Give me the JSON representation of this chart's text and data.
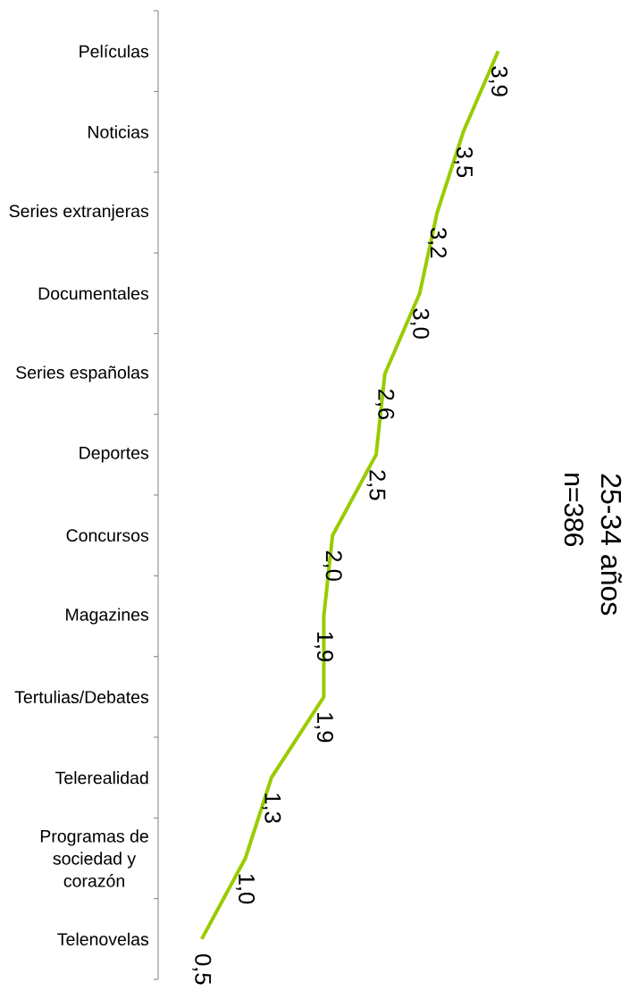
{
  "chart_data": {
    "type": "line",
    "title": "25-34 años",
    "subtitle": "n=386",
    "categories": [
      "Películas",
      "Noticias",
      "Series extranjeras",
      "Documentales",
      "Series españolas",
      "Deportes",
      "Concursos",
      "Magazines",
      "Tertulias/Debates",
      "Telerealidad",
      "Programas de sociedad y corazón",
      "Telenovelas"
    ],
    "values": [
      3.9,
      3.5,
      3.2,
      3.0,
      2.6,
      2.5,
      2.0,
      1.9,
      1.9,
      1.3,
      1.0,
      0.5
    ],
    "value_labels": [
      "3,9",
      "3,5",
      "3,2",
      "3,0",
      "2,6",
      "2,5",
      "2,0",
      "1,9",
      "1,9",
      "1,3",
      "1,0",
      "0,5"
    ],
    "color": "#99cc00",
    "orientation": "horizontal",
    "tick_labels": "y"
  }
}
